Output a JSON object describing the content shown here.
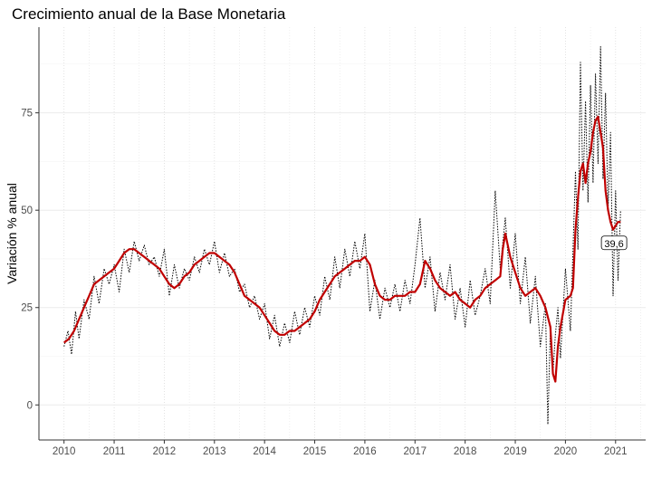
{
  "chart_data": {
    "type": "line",
    "title": "Crecimiento anual de la Base Monetaria",
    "xlabel": "",
    "ylabel": "Variación % anual",
    "xlim": [
      2009.5,
      2021.6
    ],
    "ylim": [
      -9,
      97
    ],
    "x_ticks": [
      2010,
      2011,
      2012,
      2013,
      2014,
      2015,
      2016,
      2017,
      2018,
      2019,
      2020,
      2021
    ],
    "x_tick_labels": [
      "2010",
      "2011",
      "2012",
      "2013",
      "2014",
      "2015",
      "2016",
      "2017",
      "2018",
      "2019",
      "2020",
      "2021"
    ],
    "y_ticks": [
      0,
      25,
      50,
      75
    ],
    "y_tick_labels": [
      "0",
      "25",
      "50",
      "75"
    ],
    "grid": true,
    "colors": {
      "smooth": "#c00000",
      "weekly": "#000000",
      "grid": "#ebebeb"
    },
    "series": [
      {
        "style": "dotted-black",
        "x": [
          2010.0,
          2010.08,
          2010.15,
          2010.23,
          2010.3,
          2010.4,
          2010.5,
          2010.6,
          2010.7,
          2010.8,
          2010.9,
          2011.0,
          2011.1,
          2011.2,
          2011.3,
          2011.4,
          2011.5,
          2011.6,
          2011.7,
          2011.8,
          2011.9,
          2012.0,
          2012.1,
          2012.2,
          2012.3,
          2012.4,
          2012.5,
          2012.6,
          2012.7,
          2012.8,
          2012.9,
          2013.0,
          2013.1,
          2013.2,
          2013.3,
          2013.4,
          2013.5,
          2013.6,
          2013.7,
          2013.8,
          2013.9,
          2014.0,
          2014.1,
          2014.2,
          2014.3,
          2014.4,
          2014.5,
          2014.6,
          2014.7,
          2014.8,
          2014.9,
          2015.0,
          2015.1,
          2015.2,
          2015.3,
          2015.4,
          2015.5,
          2015.6,
          2015.7,
          2015.8,
          2015.9,
          2016.0,
          2016.1,
          2016.2,
          2016.3,
          2016.4,
          2016.5,
          2016.6,
          2016.7,
          2016.8,
          2016.9,
          2017.0,
          2017.1,
          2017.2,
          2017.3,
          2017.4,
          2017.5,
          2017.6,
          2017.7,
          2017.8,
          2017.9,
          2018.0,
          2018.1,
          2018.2,
          2018.3,
          2018.4,
          2018.5,
          2018.6,
          2018.7,
          2018.8,
          2018.9,
          2019.0,
          2019.1,
          2019.2,
          2019.3,
          2019.4,
          2019.5,
          2019.6,
          2019.65,
          2019.7,
          2019.75,
          2019.8,
          2019.85,
          2019.9,
          2020.0,
          2020.1,
          2020.2,
          2020.25,
          2020.3,
          2020.35,
          2020.4,
          2020.45,
          2020.5,
          2020.55,
          2020.6,
          2020.65,
          2020.7,
          2020.75,
          2020.8,
          2020.85,
          2020.9,
          2020.95,
          2021.0,
          2021.05,
          2021.1
        ],
        "y": [
          15,
          19,
          13,
          24,
          17,
          27,
          22,
          33,
          26,
          35,
          31,
          36,
          29,
          40,
          34,
          42,
          37,
          41,
          36,
          38,
          33,
          40,
          28,
          36,
          30,
          35,
          32,
          38,
          34,
          40,
          36,
          42,
          34,
          39,
          33,
          35,
          29,
          31,
          25,
          28,
          22,
          26,
          17,
          23,
          15,
          21,
          16,
          24,
          18,
          25,
          20,
          28,
          23,
          33,
          27,
          38,
          30,
          40,
          33,
          42,
          35,
          44,
          24,
          32,
          22,
          30,
          25,
          31,
          24,
          32,
          26,
          36,
          48,
          30,
          38,
          24,
          34,
          27,
          36,
          22,
          30,
          20,
          32,
          23,
          28,
          35,
          26,
          55,
          35,
          48,
          30,
          44,
          26,
          38,
          21,
          33,
          15,
          26,
          -5,
          20,
          8,
          18,
          25,
          12,
          35,
          19,
          60,
          40,
          88,
          55,
          78,
          52,
          82,
          57,
          85,
          62,
          92,
          58,
          80,
          50,
          70,
          28,
          55,
          32,
          50
        ]
      },
      {
        "style": "smooth-red",
        "x": [
          2010.0,
          2010.1,
          2010.2,
          2010.3,
          2010.4,
          2010.5,
          2010.6,
          2010.7,
          2010.8,
          2010.9,
          2011.0,
          2011.1,
          2011.2,
          2011.3,
          2011.4,
          2011.5,
          2011.6,
          2011.7,
          2011.8,
          2011.9,
          2012.0,
          2012.1,
          2012.2,
          2012.3,
          2012.4,
          2012.5,
          2012.6,
          2012.7,
          2012.8,
          2012.9,
          2013.0,
          2013.1,
          2013.2,
          2013.3,
          2013.4,
          2013.5,
          2013.6,
          2013.7,
          2013.8,
          2013.9,
          2014.0,
          2014.1,
          2014.2,
          2014.3,
          2014.4,
          2014.5,
          2014.6,
          2014.7,
          2014.8,
          2014.9,
          2015.0,
          2015.1,
          2015.2,
          2015.3,
          2015.4,
          2015.5,
          2015.6,
          2015.7,
          2015.8,
          2015.9,
          2016.0,
          2016.1,
          2016.2,
          2016.3,
          2016.4,
          2016.5,
          2016.6,
          2016.7,
          2016.8,
          2016.9,
          2017.0,
          2017.1,
          2017.2,
          2017.3,
          2017.4,
          2017.5,
          2017.6,
          2017.7,
          2017.8,
          2017.9,
          2018.0,
          2018.1,
          2018.2,
          2018.3,
          2018.4,
          2018.5,
          2018.6,
          2018.7,
          2018.75,
          2018.8,
          2018.9,
          2019.0,
          2019.1,
          2019.2,
          2019.3,
          2019.4,
          2019.5,
          2019.6,
          2019.7,
          2019.75,
          2019.8,
          2019.85,
          2019.9,
          2020.0,
          2020.1,
          2020.15,
          2020.2,
          2020.25,
          2020.3,
          2020.35,
          2020.4,
          2020.45,
          2020.5,
          2020.55,
          2020.6,
          2020.65,
          2020.7,
          2020.75,
          2020.8,
          2020.85,
          2020.9,
          2020.95,
          2021.0,
          2021.05,
          2021.1
        ],
        "y": [
          16,
          17,
          19,
          22,
          25,
          28,
          31,
          32,
          33,
          34,
          35,
          37,
          39,
          40,
          40,
          39,
          38,
          37,
          36,
          35,
          33,
          31,
          30,
          31,
          33,
          34,
          36,
          37,
          38,
          39,
          39,
          38,
          37,
          36,
          34,
          31,
          28,
          27,
          26,
          25,
          23,
          21,
          19,
          18,
          18,
          19,
          19,
          20,
          21,
          22,
          24,
          27,
          29,
          31,
          33,
          34,
          35,
          36,
          37,
          37,
          38,
          36,
          31,
          28,
          27,
          27,
          28,
          28,
          28,
          29,
          29,
          31,
          37,
          35,
          32,
          30,
          29,
          28,
          29,
          27,
          26,
          25,
          27,
          28,
          30,
          31,
          32,
          33,
          40,
          44,
          38,
          34,
          30,
          28,
          29,
          30,
          28,
          25,
          20,
          8,
          6,
          15,
          20,
          27,
          28,
          30,
          45,
          53,
          60,
          62,
          57,
          62,
          65,
          70,
          73,
          74,
          70,
          66,
          55,
          50,
          47,
          45,
          46,
          47,
          47
        ]
      }
    ],
    "annotation": {
      "text": "39,6",
      "x": 2020.97,
      "y": 41.5
    }
  }
}
